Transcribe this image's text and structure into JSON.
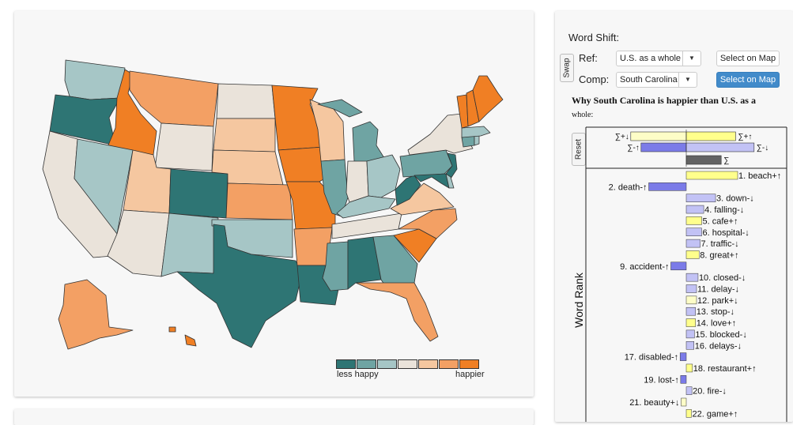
{
  "colors": {
    "scale": [
      "#2e7574",
      "#6fa4a3",
      "#a6c6c6",
      "#eae3da",
      "#f5c7a0",
      "#f3a064",
      "#f07f24"
    ],
    "up_positive": "#ffff8c",
    "down_positive": "#c2c2f5",
    "up_negative": "#fdfdc7",
    "down_negative": "#7b7be8",
    "sum_bar": "#636363",
    "primary_button": "#428bca"
  },
  "legend": {
    "low": "less happy",
    "high": "happier"
  },
  "wordshift": {
    "heading": "Word Shift:",
    "ref_label": "Ref:",
    "comp_label": "Comp:",
    "swap_label": "Swap",
    "ref_value": "U.S. as a whole",
    "comp_value": "South Carolina",
    "select_map_ref": "Select on Map",
    "select_map_comp": "Select on Map",
    "title": "Why South Carolina is happier than U.S. as a",
    "title_cont": "whole:",
    "reset_label": "Reset",
    "axis_label": "Word Rank",
    "summary": {
      "labels": [
        "∑+↓",
        "∑+↑",
        "∑-↑",
        "∑-↓",
        "∑"
      ],
      "values": {
        "pos_down": -0.27,
        "pos_up": 0.24,
        "neg_up": -0.22,
        "neg_down": 0.33,
        "total": 0.17
      }
    },
    "words": [
      {
        "label": "1. beach+↑",
        "value": 1.0,
        "type": "up_positive"
      },
      {
        "label": "2. death-↑",
        "value": -0.73,
        "type": "down_negative"
      },
      {
        "label": "3. down-↓",
        "value": 0.57,
        "type": "down_positive"
      },
      {
        "label": "4. falling-↓",
        "value": 0.34,
        "type": "down_positive"
      },
      {
        "label": "5. cafe+↑",
        "value": 0.3,
        "type": "up_positive"
      },
      {
        "label": "6. hospital-↓",
        "value": 0.3,
        "type": "down_positive"
      },
      {
        "label": "7. traffic-↓",
        "value": 0.27,
        "type": "down_positive"
      },
      {
        "label": "8. great+↑",
        "value": 0.25,
        "type": "up_positive"
      },
      {
        "label": "9. accident-↑",
        "value": -0.3,
        "type": "down_negative"
      },
      {
        "label": "10. closed-↓",
        "value": 0.23,
        "type": "down_positive"
      },
      {
        "label": "11. delay-↓",
        "value": 0.2,
        "type": "down_positive"
      },
      {
        "label": "12. park+↓",
        "value": 0.2,
        "type": "up_negative"
      },
      {
        "label": "13. stop-↓",
        "value": 0.18,
        "type": "down_positive"
      },
      {
        "label": "14. love+↑",
        "value": 0.18,
        "type": "up_positive"
      },
      {
        "label": "15. blocked-↓",
        "value": 0.16,
        "type": "down_positive"
      },
      {
        "label": "16. delays-↓",
        "value": 0.15,
        "type": "down_positive"
      },
      {
        "label": "17. disabled-↑",
        "value": -0.12,
        "type": "down_negative"
      },
      {
        "label": "18. restaurant+↑",
        "value": 0.12,
        "type": "up_positive"
      },
      {
        "label": "19. lost-↑",
        "value": -0.11,
        "type": "down_negative"
      },
      {
        "label": "20. fire-↓",
        "value": 0.11,
        "type": "down_positive"
      },
      {
        "label": "21. beauty+↓",
        "value": -0.1,
        "type": "up_negative"
      },
      {
        "label": "22. game+↑",
        "value": 0.1,
        "type": "up_positive"
      }
    ]
  }
}
